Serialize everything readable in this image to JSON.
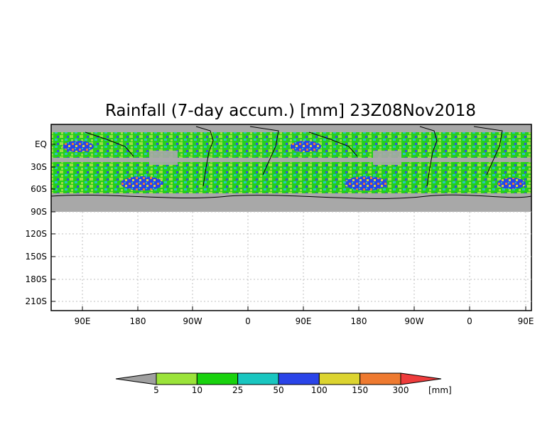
{
  "title": "Rainfall (7-day accum.) [mm] 23Z08Nov2018",
  "map": {
    "y_labels": [
      "EQ",
      "30S",
      "60S",
      "90S",
      "120S",
      "150S",
      "180S",
      "210S"
    ],
    "x_labels": [
      "90E",
      "180",
      "90W",
      "0",
      "90E",
      "180",
      "90W",
      "0",
      "90E"
    ],
    "land_color": "#a8a8a8",
    "coast_color": "#000000",
    "grid": "dotted"
  },
  "legend": {
    "thresholds": [
      "5",
      "10",
      "25",
      "50",
      "100",
      "150",
      "300"
    ],
    "unit": "[mm]",
    "colors": [
      "#a0a0a0",
      "#9be33a",
      "#19d20e",
      "#19c6c0",
      "#2a44e8",
      "#dcd430",
      "#ee7a30",
      "#ee3c3c"
    ]
  }
}
